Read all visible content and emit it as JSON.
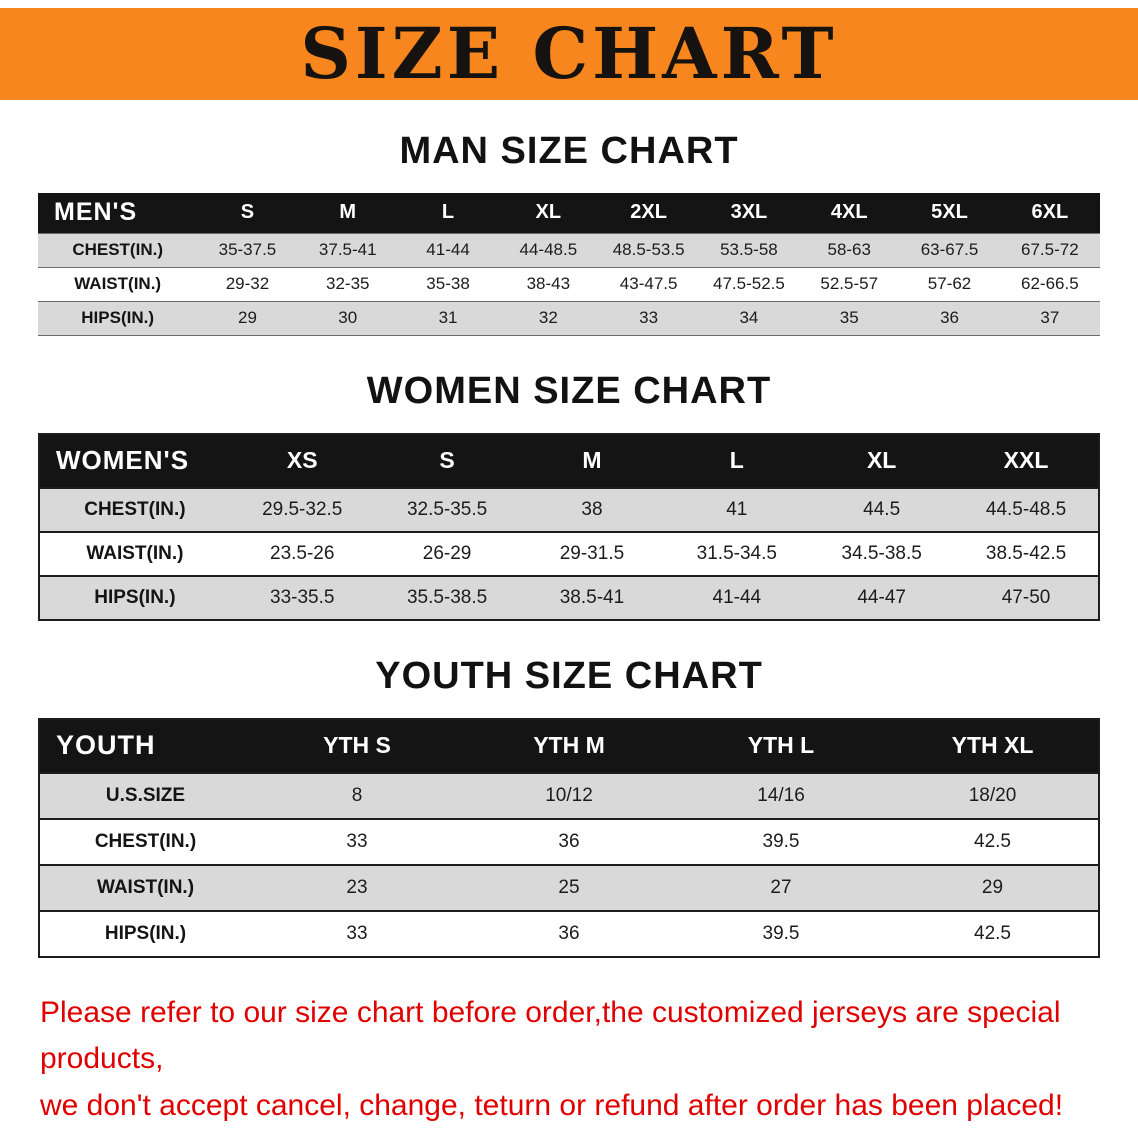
{
  "banner": {
    "title": "SIZE CHART"
  },
  "colors": {
    "banner_bg": "#f6861d",
    "banner_text": "#151210",
    "header_bg": "#141414",
    "header_text": "#ffffff",
    "row_alt_bg": "#d9d9d9",
    "footer_text": "#e00000"
  },
  "chart_data": [
    {
      "type": "table",
      "title": "MAN SIZE CHART",
      "corner_label": "MEN'S",
      "columns": [
        "S",
        "M",
        "L",
        "XL",
        "2XL",
        "3XL",
        "4XL",
        "5XL",
        "6XL"
      ],
      "rows": [
        {
          "label": "CHEST(IN.)",
          "values": [
            "35-37.5",
            "37.5-41",
            "41-44",
            "44-48.5",
            "48.5-53.5",
            "53.5-58",
            "58-63",
            "63-67.5",
            "67.5-72"
          ]
        },
        {
          "label": "WAIST(IN.)",
          "values": [
            "29-32",
            "32-35",
            "35-38",
            "38-43",
            "43-47.5",
            "47.5-52.5",
            "52.5-57",
            "57-62",
            "62-66.5"
          ]
        },
        {
          "label": "HIPS(IN.)",
          "values": [
            "29",
            "30",
            "31",
            "32",
            "33",
            "34",
            "35",
            "36",
            "37"
          ]
        }
      ]
    },
    {
      "type": "table",
      "title": "WOMEN SIZE CHART",
      "corner_label": "WOMEN'S",
      "columns": [
        "XS",
        "S",
        "M",
        "L",
        "XL",
        "XXL"
      ],
      "rows": [
        {
          "label": "CHEST(IN.)",
          "values": [
            "29.5-32.5",
            "32.5-35.5",
            "38",
            "41",
            "44.5",
            "44.5-48.5"
          ]
        },
        {
          "label": "WAIST(IN.)",
          "values": [
            "23.5-26",
            "26-29",
            "29-31.5",
            "31.5-34.5",
            "34.5-38.5",
            "38.5-42.5"
          ]
        },
        {
          "label": "HIPS(IN.)",
          "values": [
            "33-35.5",
            "35.5-38.5",
            "38.5-41",
            "41-44",
            "44-47",
            "47-50"
          ]
        }
      ]
    },
    {
      "type": "table",
      "title": "YOUTH SIZE CHART",
      "corner_label": "YOUTH",
      "columns": [
        "YTH S",
        "YTH M",
        "YTH L",
        "YTH XL"
      ],
      "rows": [
        {
          "label": "U.S.SIZE",
          "values": [
            "8",
            "10/12",
            "14/16",
            "18/20"
          ]
        },
        {
          "label": "CHEST(IN.)",
          "values": [
            "33",
            "36",
            "39.5",
            "42.5"
          ]
        },
        {
          "label": "WAIST(IN.)",
          "values": [
            "23",
            "25",
            "27",
            "29"
          ]
        },
        {
          "label": "HIPS(IN.)",
          "values": [
            "33",
            "36",
            "39.5",
            "42.5"
          ]
        }
      ]
    }
  ],
  "footer": {
    "line1": "Please refer to our size chart before order,the customized jerseys are special products,",
    "line2": "we don't accept cancel, change, teturn or refund after order has been placed!"
  }
}
